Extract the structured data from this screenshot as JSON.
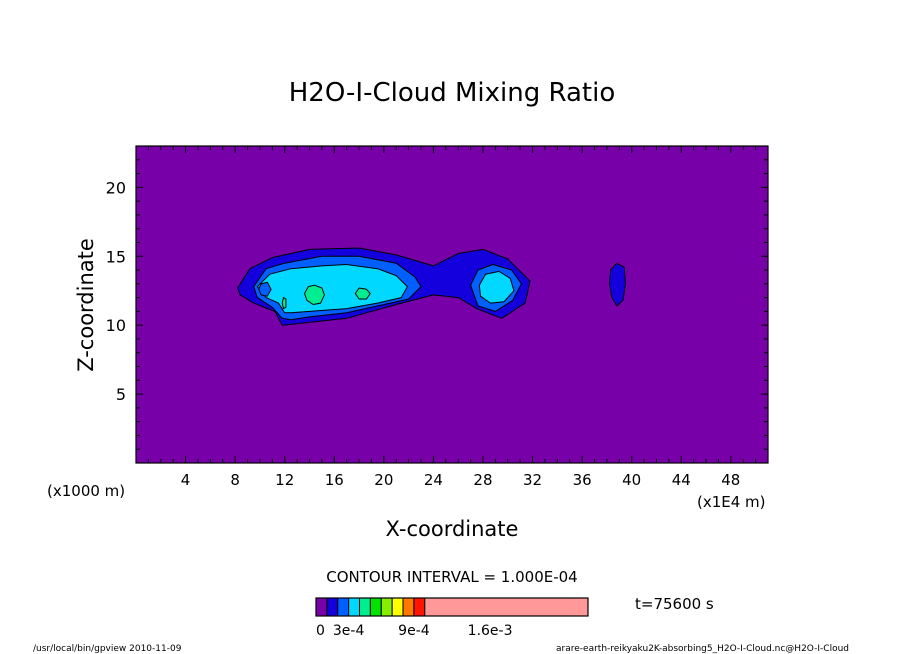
{
  "chart_data": {
    "type": "heatmap",
    "title": "H2O-I-Cloud Mixing Ratio",
    "xlabel": "X-coordinate",
    "ylabel": "Z-coordinate",
    "x_unit_left": "(x1000 m)",
    "x_unit_right": "(x1E4 m)",
    "xlim": [
      0,
      51
    ],
    "ylim": [
      0,
      23
    ],
    "x_ticks": [
      4,
      8,
      12,
      16,
      20,
      24,
      28,
      32,
      36,
      40,
      44,
      48
    ],
    "y_ticks": [
      5,
      10,
      15,
      20
    ],
    "contour_interval_text": "CONTOUR INTERVAL = 1.000E-04",
    "time_text": "t=75600 s",
    "colorbar": {
      "colors": [
        "#7800a8",
        "#1400dc",
        "#0060ff",
        "#00d8ff",
        "#00ee90",
        "#00e400",
        "#88ee00",
        "#ffff00",
        "#ff7800",
        "#ff1400",
        "#ff9898"
      ],
      "labels": [
        "0",
        "3e-4",
        "9e-4",
        "1.6e-3"
      ],
      "label_positions": [
        0,
        3,
        9,
        16
      ],
      "max_level": 25
    },
    "background_color": "#7800a8",
    "regions": [
      {
        "level": 1,
        "color": "#1400dc",
        "polygon": [
          [
            8.2,
            12.7
          ],
          [
            9.2,
            14.1
          ],
          [
            11,
            14.9
          ],
          [
            14,
            15.5
          ],
          [
            18,
            15.6
          ],
          [
            21,
            15.1
          ],
          [
            24,
            14.3
          ],
          [
            26,
            15.2
          ],
          [
            28,
            15.5
          ],
          [
            30,
            14.8
          ],
          [
            31.8,
            13.2
          ],
          [
            31.4,
            11.6
          ],
          [
            29.5,
            10.5
          ],
          [
            27.5,
            11.2
          ],
          [
            26,
            12
          ],
          [
            24,
            12.2
          ],
          [
            21,
            11.5
          ],
          [
            17,
            10.5
          ],
          [
            14,
            10.2
          ],
          [
            11.8,
            10
          ],
          [
            11.2,
            11
          ],
          [
            9.5,
            11.6
          ],
          [
            8.4,
            12.2
          ]
        ]
      },
      {
        "level": 1,
        "color": "#1400dc",
        "polygon": [
          [
            38.3,
            14
          ],
          [
            38.8,
            14.5
          ],
          [
            39.4,
            14.2
          ],
          [
            39.5,
            13.0
          ],
          [
            39.3,
            11.8
          ],
          [
            38.8,
            11.4
          ],
          [
            38.4,
            12.0
          ],
          [
            38.2,
            13.0
          ]
        ]
      },
      {
        "level": 2,
        "color": "#0060ff",
        "polygon": [
          [
            9.5,
            12.8
          ],
          [
            10.5,
            14.1
          ],
          [
            12,
            14.5
          ],
          [
            15,
            15
          ],
          [
            18,
            15
          ],
          [
            21,
            14.5
          ],
          [
            22.5,
            13.5
          ],
          [
            23,
            12.8
          ],
          [
            22,
            11.9
          ],
          [
            20,
            11.5
          ],
          [
            17,
            10.9
          ],
          [
            14,
            10.6
          ],
          [
            12.5,
            10.4
          ],
          [
            11.8,
            10.5
          ],
          [
            11,
            11.3
          ],
          [
            9.8,
            12
          ]
        ]
      },
      {
        "level": 2,
        "color": "#0060ff",
        "polygon": [
          [
            27,
            12.9
          ],
          [
            27.6,
            14
          ],
          [
            28.8,
            14.4
          ],
          [
            30.3,
            14
          ],
          [
            31.1,
            13
          ],
          [
            30.4,
            11.8
          ],
          [
            29,
            11
          ],
          [
            27.6,
            11.4
          ]
        ]
      },
      {
        "level": 3,
        "color": "#00d8ff",
        "polygon": [
          [
            9.8,
            12.8
          ],
          [
            10.8,
            13.7
          ],
          [
            12.5,
            14.1
          ],
          [
            15,
            14.3
          ],
          [
            17,
            14.4
          ],
          [
            19.5,
            14.1
          ],
          [
            21,
            13.6
          ],
          [
            21.9,
            12.8
          ],
          [
            21.4,
            12.0
          ],
          [
            19.5,
            11.6
          ],
          [
            17,
            11.2
          ],
          [
            14,
            11.0
          ],
          [
            12.5,
            10.9
          ],
          [
            12,
            10.9
          ],
          [
            11.5,
            11.6
          ],
          [
            10.5,
            12.0
          ]
        ]
      },
      {
        "level": 3,
        "color": "#00d8ff",
        "polygon": [
          [
            27.7,
            12.9
          ],
          [
            28.2,
            13.7
          ],
          [
            29.3,
            13.9
          ],
          [
            30.2,
            13.4
          ],
          [
            30.5,
            12.5
          ],
          [
            29.7,
            11.7
          ],
          [
            28.6,
            11.6
          ],
          [
            27.8,
            12.1
          ]
        ]
      },
      {
        "level": 4,
        "color": "#00ee90",
        "polygon": [
          [
            13.6,
            12.3
          ],
          [
            13.9,
            12.8
          ],
          [
            14.4,
            12.9
          ],
          [
            15.0,
            12.7
          ],
          [
            15.2,
            12.2
          ],
          [
            14.9,
            11.6
          ],
          [
            14.3,
            11.5
          ],
          [
            13.8,
            11.8
          ]
        ]
      },
      {
        "level": 4,
        "color": "#00ee90",
        "polygon": [
          [
            17.7,
            12.3
          ],
          [
            18.0,
            12.7
          ],
          [
            18.6,
            12.6
          ],
          [
            18.9,
            12.3
          ],
          [
            18.6,
            11.9
          ],
          [
            18.0,
            11.9
          ]
        ]
      },
      {
        "level": 2,
        "color": "#0060ff",
        "polygon": [
          [
            9.9,
            12.6
          ],
          [
            10.1,
            13.0
          ],
          [
            10.6,
            13.1
          ],
          [
            10.9,
            12.6
          ],
          [
            10.6,
            12.1
          ],
          [
            10.1,
            12.2
          ]
        ]
      },
      {
        "level": 4,
        "color": "#00ee90",
        "polygon": [
          [
            11.8,
            11.6
          ],
          [
            11.9,
            12.0
          ],
          [
            12.1,
            11.9
          ],
          [
            12.1,
            11.3
          ],
          [
            11.9,
            11.2
          ]
        ]
      }
    ],
    "grid": false,
    "legend": "bottom-center"
  },
  "footer": {
    "left": "/usr/local/bin/gpview  2010-11-09",
    "right": "arare-earth-reikyaku2K-absorbing5_H2O-I-Cloud.nc@H2O-I-Cloud"
  }
}
